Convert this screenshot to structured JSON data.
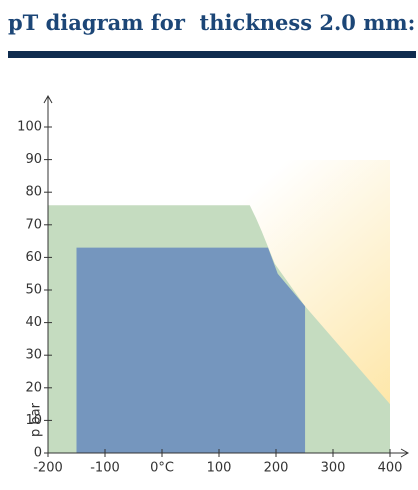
{
  "chart_data": {
    "type": "area",
    "title": "pT diagram for  thickness 2.0 mm:",
    "y_label": "p bar",
    "xlim": [
      -200,
      400
    ],
    "ylim": [
      0,
      100
    ],
    "xticks": [
      -200,
      -100,
      {
        "value": 0,
        "label": "0°C"
      },
      100,
      200,
      300,
      400
    ],
    "yticks": [
      0,
      10,
      20,
      30,
      40,
      50,
      60,
      70,
      80,
      90,
      100
    ],
    "series": [
      {
        "color": "#c5dcc0",
        "x": [
          -200,
          -200,
          154,
          165,
          175,
          198,
          251,
          400,
          400
        ],
        "y": [
          0,
          76,
          76,
          72,
          68,
          58,
          45,
          15,
          0
        ]
      },
      {
        "color": "#7596be",
        "x": [
          -150,
          -150,
          186,
          203,
          251,
          251
        ],
        "y": [
          0,
          63,
          63,
          55,
          45,
          0
        ]
      }
    ]
  }
}
